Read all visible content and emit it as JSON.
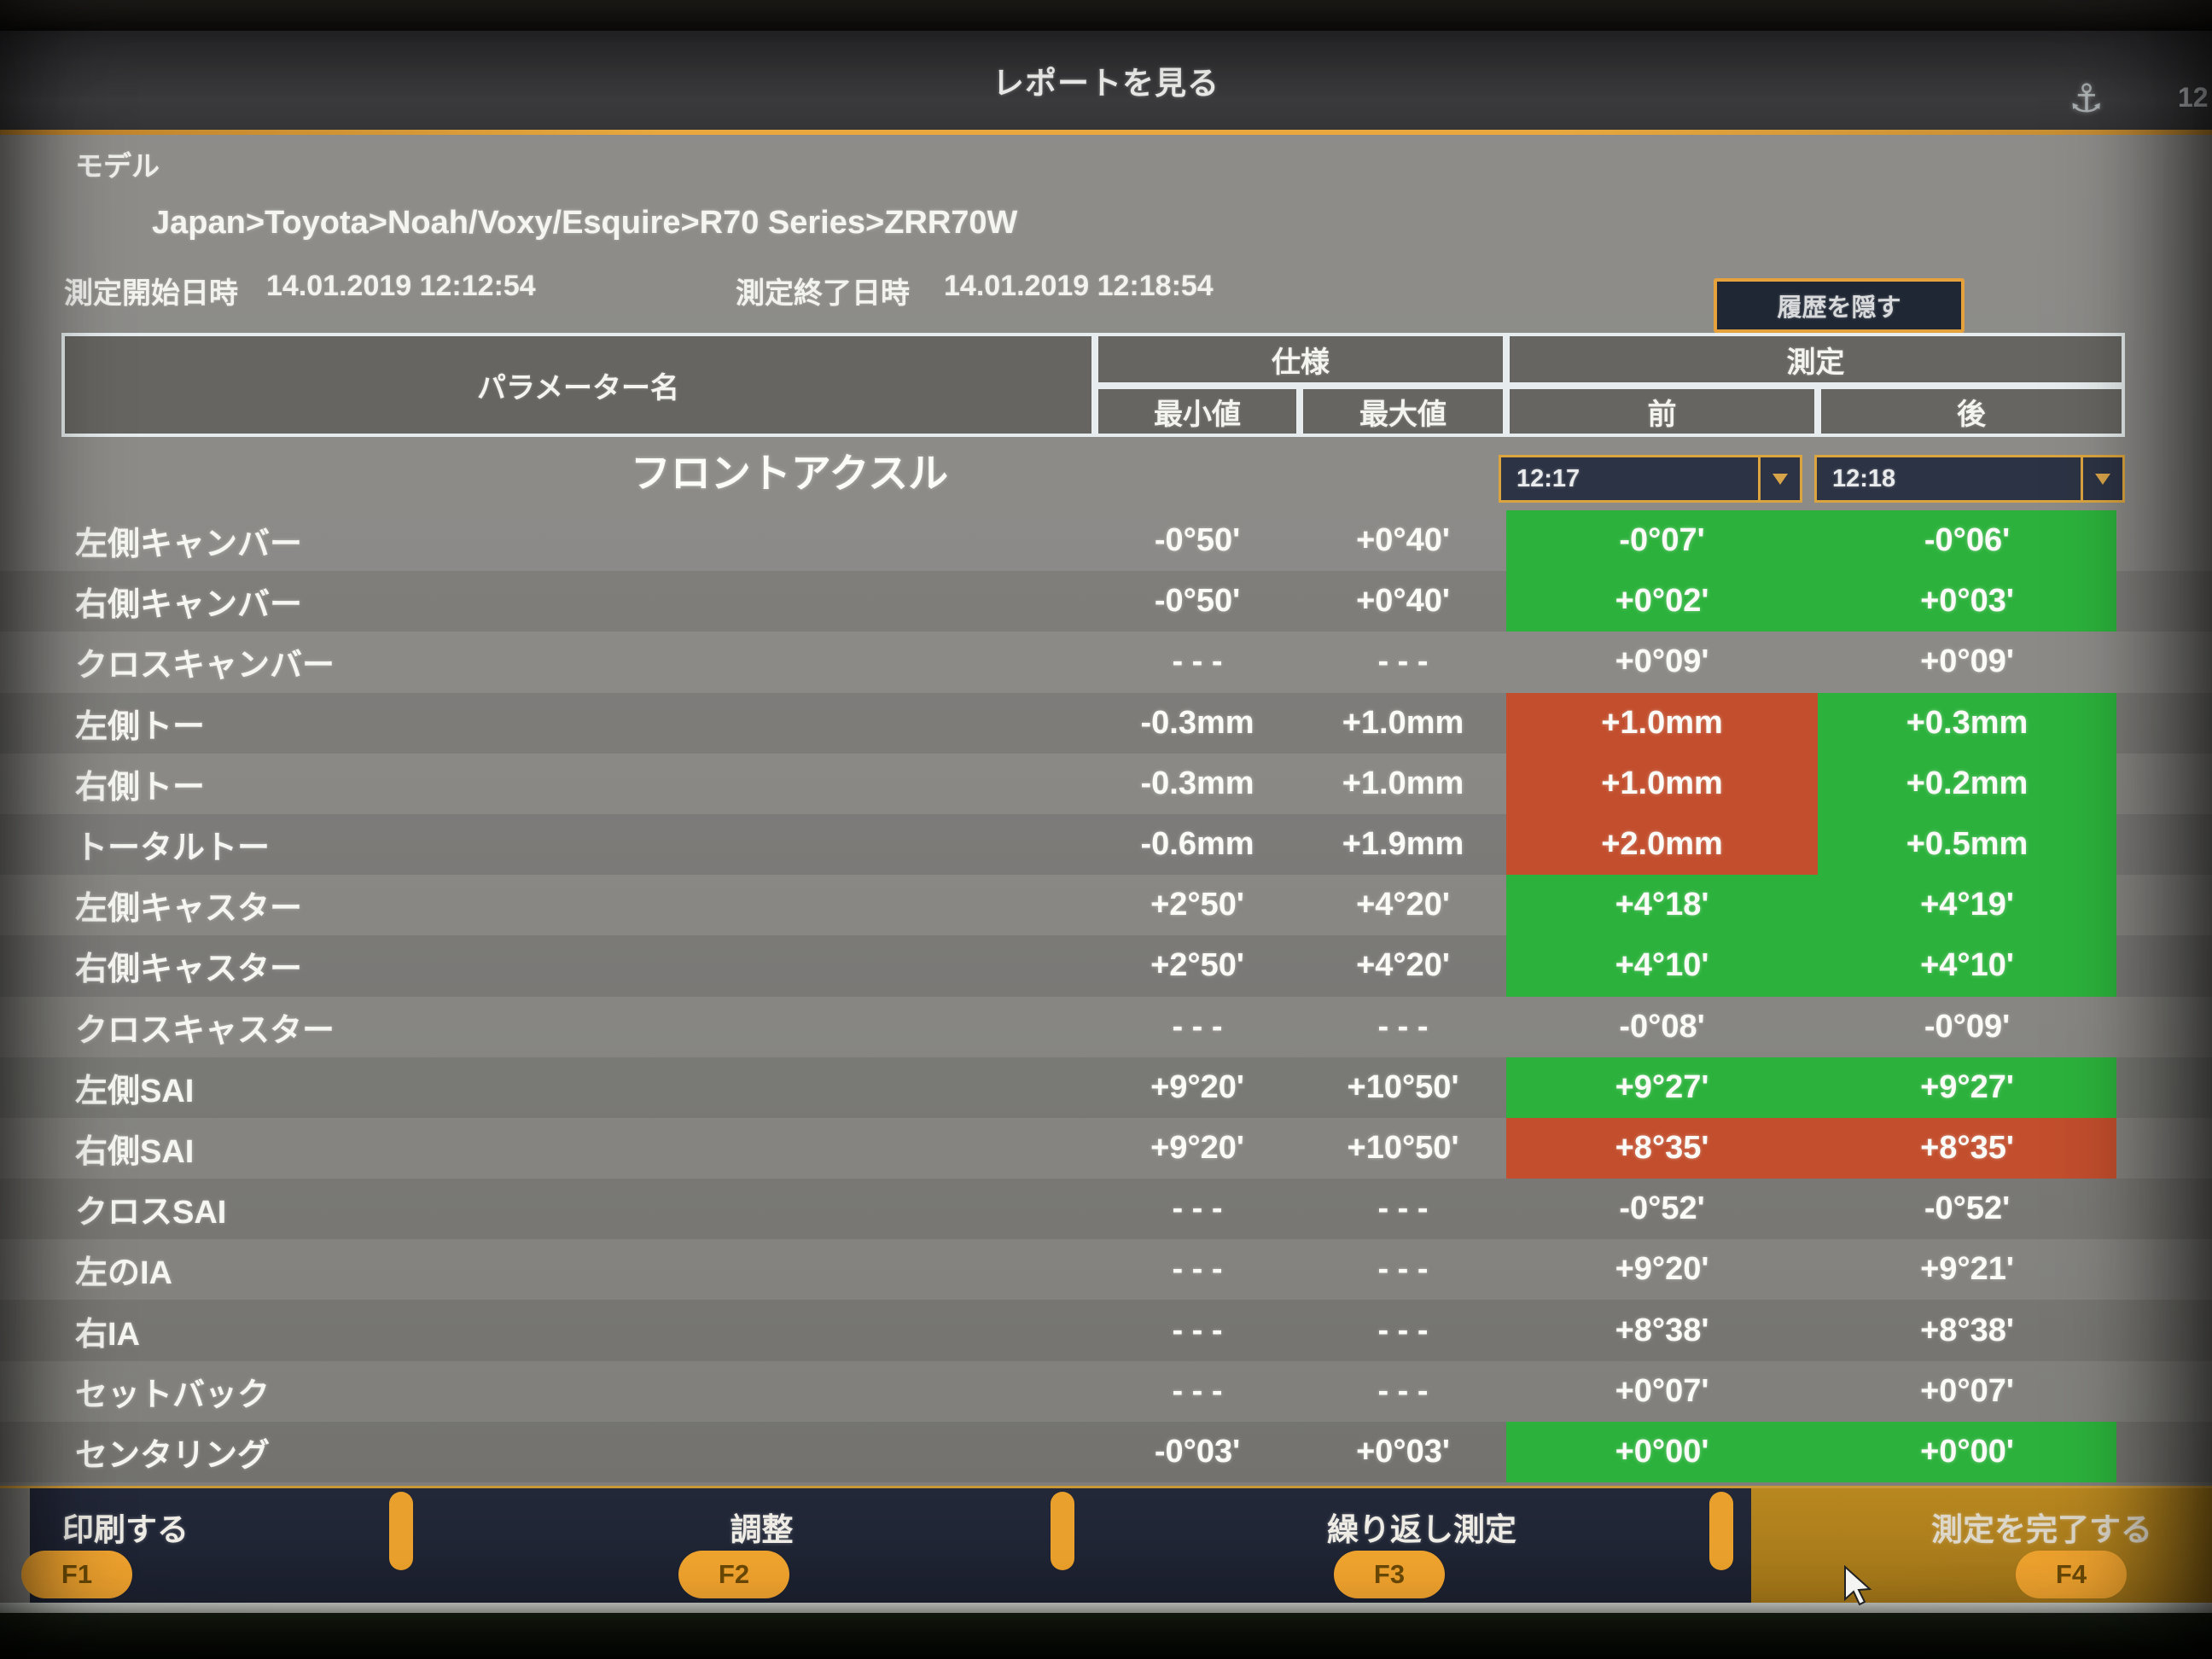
{
  "screen": {
    "title": "レポートを見る",
    "statusbar": {
      "icon": "anchor-icon",
      "clock_partial": "12"
    }
  },
  "model": {
    "label": "モデル",
    "breadcrumb": "Japan>Toyota>Noah/Voxy/Esquire>R70 Series>ZRR70W"
  },
  "times": {
    "start_label": "測定開始日時",
    "start_value": "14.01.2019 12:12:54",
    "end_label": "測定終了日時",
    "end_value": "14.01.2019 12:18:54"
  },
  "history_button_label": "履歴を隠す",
  "table": {
    "param_header": "パラメーター名",
    "spec_header": "仕様",
    "meas_header": "測定",
    "min_header": "最小値",
    "max_header": "最大値",
    "before_header": "前",
    "after_header": "後",
    "section": "フロントアクスル",
    "before_time": "12:17",
    "after_time": "12:18",
    "rows": [
      {
        "name": "左側キャンバー",
        "min": "-0°50'",
        "max": "+0°40'",
        "before": "-0°07'",
        "after": "-0°06'",
        "before_state": "ok",
        "after_state": "ok"
      },
      {
        "name": "右側キャンバー",
        "min": "-0°50'",
        "max": "+0°40'",
        "before": "+0°02'",
        "after": "+0°03'",
        "before_state": "ok",
        "after_state": "ok"
      },
      {
        "name": "クロスキャンバー",
        "min": "- - -",
        "max": "- - -",
        "before": "+0°09'",
        "after": "+0°09'",
        "before_state": "none",
        "after_state": "none"
      },
      {
        "name": "左側トー",
        "min": "-0.3mm",
        "max": "+1.0mm",
        "before": "+1.0mm",
        "after": "+0.3mm",
        "before_state": "bad",
        "after_state": "ok"
      },
      {
        "name": "右側トー",
        "min": "-0.3mm",
        "max": "+1.0mm",
        "before": "+1.0mm",
        "after": "+0.2mm",
        "before_state": "bad",
        "after_state": "ok"
      },
      {
        "name": "トータルトー",
        "min": "-0.6mm",
        "max": "+1.9mm",
        "before": "+2.0mm",
        "after": "+0.5mm",
        "before_state": "bad",
        "after_state": "ok"
      },
      {
        "name": "左側キャスター",
        "min": "+2°50'",
        "max": "+4°20'",
        "before": "+4°18'",
        "after": "+4°19'",
        "before_state": "ok",
        "after_state": "ok"
      },
      {
        "name": "右側キャスター",
        "min": "+2°50'",
        "max": "+4°20'",
        "before": "+4°10'",
        "after": "+4°10'",
        "before_state": "ok",
        "after_state": "ok"
      },
      {
        "name": "クロスキャスター",
        "min": "- - -",
        "max": "- - -",
        "before": "-0°08'",
        "after": "-0°09'",
        "before_state": "none",
        "after_state": "none"
      },
      {
        "name": "左側SAI",
        "min": "+9°20'",
        "max": "+10°50'",
        "before": "+9°27'",
        "after": "+9°27'",
        "before_state": "ok",
        "after_state": "ok"
      },
      {
        "name": "右側SAI",
        "min": "+9°20'",
        "max": "+10°50'",
        "before": "+8°35'",
        "after": "+8°35'",
        "before_state": "bad",
        "after_state": "bad"
      },
      {
        "name": "クロスSAI",
        "min": "- - -",
        "max": "- - -",
        "before": "-0°52'",
        "after": "-0°52'",
        "before_state": "none",
        "after_state": "none"
      },
      {
        "name": "左のIA",
        "min": "- - -",
        "max": "- - -",
        "before": "+9°20'",
        "after": "+9°21'",
        "before_state": "none",
        "after_state": "none"
      },
      {
        "name": "右IA",
        "min": "- - -",
        "max": "- - -",
        "before": "+8°38'",
        "after": "+8°38'",
        "before_state": "none",
        "after_state": "none"
      },
      {
        "name": "セットバック",
        "min": "- - -",
        "max": "- - -",
        "before": "+0°07'",
        "after": "+0°07'",
        "before_state": "none",
        "after_state": "none"
      },
      {
        "name": "センタリング",
        "min": "-0°03'",
        "max": "+0°03'",
        "before": "+0°00'",
        "after": "+0°00'",
        "before_state": "ok",
        "after_state": "ok"
      }
    ]
  },
  "footer": {
    "buttons": [
      {
        "label": "印刷する",
        "key": "F1",
        "highlight": false
      },
      {
        "label": "調整",
        "key": "F2",
        "highlight": false
      },
      {
        "label": "繰り返し測定",
        "key": "F3",
        "highlight": false
      },
      {
        "label": "測定を完了する",
        "key": "F4",
        "highlight": true
      }
    ]
  },
  "colors": {
    "ok_green": "#2cb23c",
    "bad_red": "#c24e2d",
    "accent_orange": "#e9a02c",
    "panel_navy": "#232839",
    "highlight_gold": "#b8871f"
  }
}
